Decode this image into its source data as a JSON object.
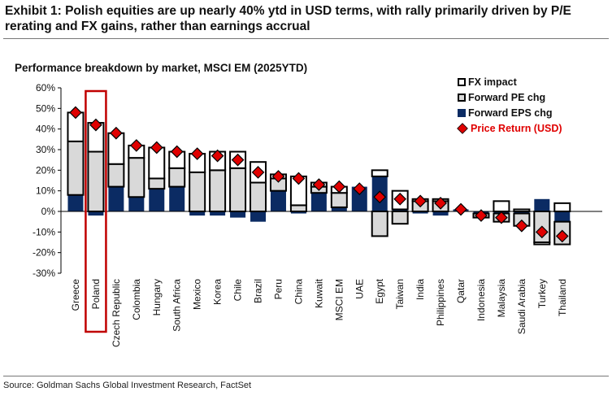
{
  "header": {
    "title": "Exhibit 1: Polish equities are up nearly 40% ytd in USD terms, with rally primarily driven by P/E rerating and FX gains, rather than earnings accrual",
    "source": "Source: Goldman Sachs Global Investment Research, FactSet"
  },
  "chart_data": {
    "type": "bar",
    "stacked": true,
    "title": "Performance breakdown by market, MSCI EM (2025YTD)",
    "xlabel": "",
    "ylabel": "",
    "ylim": [
      -30,
      60
    ],
    "yticks": [
      -30,
      -20,
      -10,
      0,
      10,
      20,
      30,
      40,
      50,
      60
    ],
    "ytick_format": "percent",
    "highlight_category": "Poland",
    "highlight_color": "#c00000",
    "legend_position": "top-right",
    "categories": [
      "Greece",
      "Poland",
      "Czech Republic",
      "Colombia",
      "Hungary",
      "South Africa",
      "Mexico",
      "Korea",
      "Chile",
      "Brazil",
      "Peru",
      "China",
      "Kuwait",
      "MSCI EM",
      "UAE",
      "Egypt",
      "Taiwan",
      "India",
      "Philippines",
      "Qatar",
      "Indonesia",
      "Malaysia",
      "Saudi Arabia",
      "Turkey",
      "Thailand"
    ],
    "series": [
      {
        "name": "Forward EPS chg",
        "kind": "bar",
        "color": "#0b2b63",
        "values": [
          8,
          -2,
          12,
          7,
          11,
          12,
          -2,
          -2,
          -3,
          -5,
          10,
          -1,
          9,
          2,
          12,
          17,
          1,
          -1,
          -2,
          1,
          -1,
          -1,
          -1,
          6,
          -5
        ]
      },
      {
        "name": "Forward PE chg",
        "kind": "bar",
        "color": "#d9d9d9",
        "values": [
          26,
          29,
          11,
          19,
          5,
          9,
          19,
          20,
          21,
          14,
          6,
          3,
          3,
          7,
          0,
          -12,
          -6,
          5,
          5,
          0,
          -2,
          -4,
          -6,
          -15,
          -11
        ]
      },
      {
        "name": "FX impact",
        "kind": "bar",
        "color": "#ffffff",
        "values": [
          14,
          14,
          15,
          6,
          15,
          8,
          9,
          9,
          8,
          10,
          2,
          14,
          2,
          3,
          0,
          3,
          9,
          1,
          1,
          0,
          0,
          5,
          1,
          -1,
          4
        ]
      },
      {
        "name": "Price Return (USD)",
        "kind": "marker",
        "color": "#e00000",
        "values": [
          48,
          42,
          38,
          32,
          31,
          29,
          28,
          27,
          25,
          19,
          17,
          16,
          13,
          12,
          11,
          7,
          6,
          5,
          4,
          1,
          -2,
          -3,
          -7,
          -10,
          -12
        ]
      }
    ],
    "legend": [
      {
        "name": "FX impact",
        "swatch": "sw-fx"
      },
      {
        "name": "Forward PE chg",
        "swatch": "sw-pe"
      },
      {
        "name": "Forward EPS chg",
        "swatch": "sw-eps"
      },
      {
        "name": "Price Return (USD)",
        "swatch": "sw-ret"
      }
    ]
  }
}
